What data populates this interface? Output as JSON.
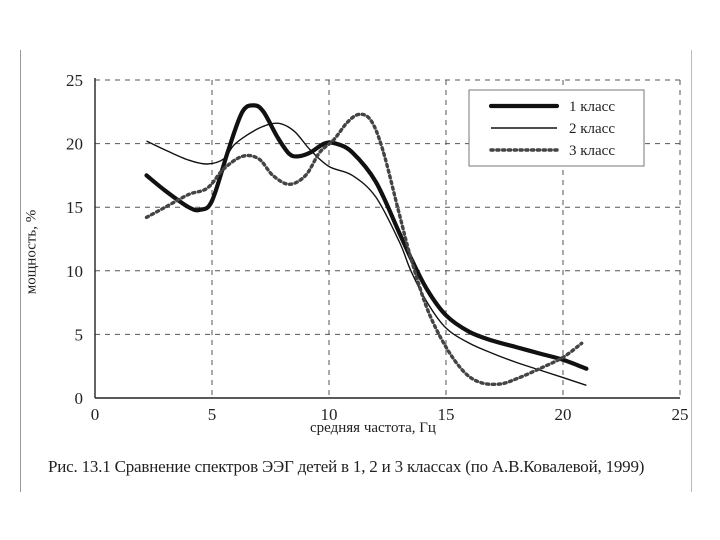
{
  "chart_data": {
    "type": "line",
    "caption": "Рис. 13.1 Сравнение спектров ЭЭГ детей в 1, 2 и 3 классах (по А.В.Ковалевой, 1999)",
    "xlabel": "средняя частота, Гц",
    "ylabel": "мощность, %",
    "xlim": [
      0,
      25
    ],
    "ylim": [
      0,
      25
    ],
    "xticks": [
      0,
      5,
      10,
      15,
      20,
      25
    ],
    "yticks": [
      0,
      5,
      10,
      15,
      20,
      25
    ],
    "grid": true,
    "legend_position": "top-right",
    "series": [
      {
        "name": "1 класс",
        "style": "thick",
        "x": [
          2.2,
          3,
          4,
          4.5,
          5,
          5.7,
          6.3,
          6.8,
          7.2,
          7.8,
          8.3,
          8.7,
          9.2,
          9.8,
          10.3,
          11,
          12,
          13,
          13.5,
          14.2,
          15,
          16,
          17,
          18,
          19,
          20,
          21
        ],
        "y": [
          17.5,
          16.3,
          15.0,
          14.8,
          15.5,
          19.5,
          22.5,
          23.0,
          22.5,
          20.5,
          19.2,
          19.0,
          19.3,
          20.0,
          20.0,
          19.3,
          17.0,
          13.0,
          11.0,
          8.5,
          6.5,
          5.2,
          4.5,
          4.0,
          3.5,
          3.0,
          2.3
        ]
      },
      {
        "name": "2 класс",
        "style": "thin",
        "x": [
          2.2,
          3,
          4,
          4.8,
          5.5,
          6,
          7,
          7.8,
          8.5,
          9.2,
          10,
          11,
          12,
          13,
          13.5,
          14.2,
          15,
          16,
          17,
          18,
          19,
          20,
          21
        ],
        "y": [
          20.2,
          19.5,
          18.7,
          18.4,
          18.8,
          20.0,
          21.2,
          21.6,
          21.0,
          19.5,
          18.2,
          17.5,
          15.8,
          12.3,
          10.0,
          7.5,
          5.5,
          4.3,
          3.5,
          2.8,
          2.2,
          1.6,
          1.0
        ]
      },
      {
        "name": "3 класс",
        "style": "dotted",
        "x": [
          2.2,
          3,
          4,
          4.8,
          5.5,
          6.3,
          7,
          7.6,
          8.3,
          9.0,
          9.6,
          10.2,
          10.8,
          11.3,
          11.8,
          12.3,
          13,
          13.5,
          14.2,
          15,
          15.8,
          16.5,
          17.3,
          18,
          19,
          20,
          20.8
        ],
        "y": [
          14.2,
          15.0,
          16.0,
          16.5,
          18.0,
          19.0,
          18.8,
          17.5,
          16.8,
          17.5,
          19.3,
          20.3,
          21.7,
          22.3,
          21.8,
          19.5,
          14.5,
          11.0,
          7.0,
          4.0,
          2.0,
          1.2,
          1.1,
          1.5,
          2.3,
          3.2,
          4.3
        ]
      }
    ]
  }
}
